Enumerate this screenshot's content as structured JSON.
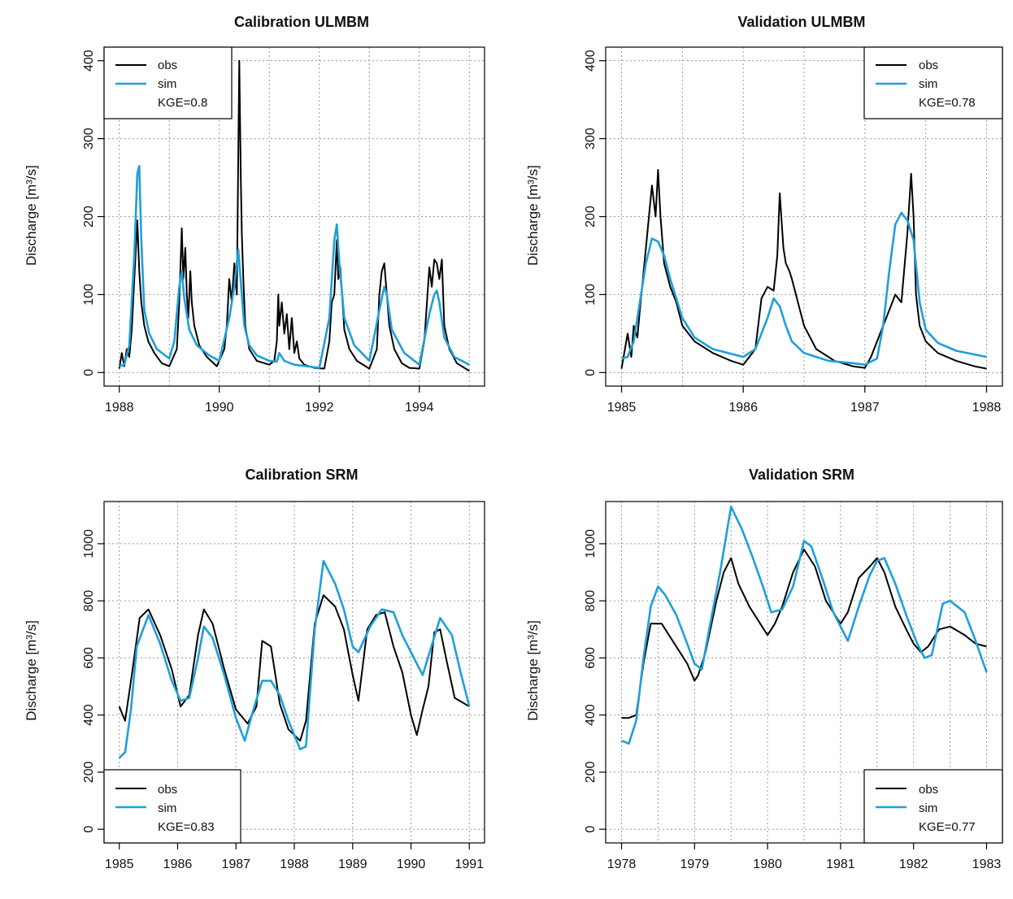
{
  "colors": {
    "obs": "#000000",
    "sim": "#1f9fd9",
    "grid": "#9a9a9a"
  },
  "legend": {
    "obs_label": "obs",
    "sim_label": "sim"
  },
  "chart_data": [
    {
      "type": "line",
      "title": "Calibration ULMBM",
      "ylabel": "Discharge [m³/s]",
      "xlim": [
        1988,
        1995
      ],
      "ylim": [
        0,
        400
      ],
      "xticks": [
        1988,
        1990,
        1992,
        1994
      ],
      "xgrid": [
        1988,
        1989,
        1990,
        1991,
        1992,
        1993,
        1994,
        1995
      ],
      "yticks": [
        0,
        100,
        200,
        300,
        400
      ],
      "legend_position": "top-left",
      "kge": "KGE=0.8",
      "series": [
        {
          "name": "obs",
          "x": [
            1988.0,
            1988.05,
            1988.1,
            1988.15,
            1988.2,
            1988.25,
            1988.3,
            1988.36,
            1988.4,
            1988.44,
            1988.5,
            1988.58,
            1988.7,
            1988.85,
            1989.0,
            1989.15,
            1989.2,
            1989.25,
            1989.28,
            1989.32,
            1989.35,
            1989.38,
            1989.42,
            1989.45,
            1989.5,
            1989.6,
            1989.75,
            1989.95,
            1990.1,
            1990.15,
            1990.2,
            1990.25,
            1990.3,
            1990.35,
            1990.4,
            1990.43,
            1990.45,
            1990.48,
            1990.52,
            1990.6,
            1990.75,
            1991.0,
            1991.1,
            1991.15,
            1991.18,
            1991.2,
            1991.25,
            1991.3,
            1991.35,
            1991.4,
            1991.45,
            1991.5,
            1991.55,
            1991.6,
            1991.7,
            1991.9,
            1992.1,
            1992.2,
            1992.25,
            1992.3,
            1992.35,
            1992.38,
            1992.42,
            1992.5,
            1992.6,
            1992.75,
            1993.0,
            1993.15,
            1993.2,
            1993.25,
            1993.3,
            1993.35,
            1993.4,
            1993.5,
            1993.65,
            1993.8,
            1994.0,
            1994.1,
            1994.2,
            1994.25,
            1994.3,
            1994.35,
            1994.4,
            1994.45,
            1994.5,
            1994.6,
            1994.75,
            1995.0
          ],
          "y": [
            5,
            25,
            8,
            30,
            20,
            55,
            120,
            195,
            130,
            90,
            60,
            40,
            25,
            12,
            8,
            30,
            90,
            185,
            120,
            160,
            100,
            70,
            130,
            90,
            60,
            35,
            20,
            8,
            30,
            60,
            120,
            90,
            140,
            100,
            400,
            250,
            180,
            120,
            60,
            30,
            15,
            10,
            15,
            40,
            100,
            60,
            90,
            50,
            75,
            30,
            70,
            25,
            40,
            18,
            10,
            6,
            5,
            40,
            90,
            100,
            170,
            120,
            135,
            55,
            30,
            15,
            5,
            30,
            100,
            130,
            140,
            100,
            60,
            30,
            12,
            6,
            5,
            40,
            135,
            110,
            145,
            140,
            120,
            145,
            60,
            30,
            12,
            2
          ]
        },
        {
          "name": "sim",
          "x": [
            1988.0,
            1988.1,
            1988.2,
            1988.3,
            1988.36,
            1988.4,
            1988.44,
            1988.5,
            1988.6,
            1988.75,
            1989.0,
            1989.1,
            1989.2,
            1989.25,
            1989.3,
            1989.4,
            1989.55,
            1989.8,
            1990.0,
            1990.2,
            1990.3,
            1990.38,
            1990.45,
            1990.5,
            1990.6,
            1990.75,
            1991.0,
            1991.15,
            1991.2,
            1991.3,
            1991.5,
            1991.75,
            1992.0,
            1992.2,
            1992.3,
            1992.35,
            1992.4,
            1992.5,
            1992.7,
            1993.0,
            1993.2,
            1993.3,
            1993.35,
            1993.45,
            1993.7,
            1994.0,
            1994.2,
            1994.3,
            1994.35,
            1994.4,
            1994.5,
            1994.7,
            1995.0
          ],
          "y": [
            8,
            10,
            35,
            150,
            255,
            265,
            170,
            80,
            50,
            30,
            18,
            40,
            110,
            130,
            95,
            55,
            35,
            22,
            15,
            70,
            110,
            158,
            100,
            60,
            35,
            22,
            15,
            14,
            25,
            15,
            10,
            8,
            6,
            70,
            170,
            190,
            140,
            70,
            35,
            15,
            80,
            110,
            100,
            55,
            25,
            10,
            75,
            100,
            105,
            90,
            45,
            20,
            10
          ]
        }
      ]
    },
    {
      "type": "line",
      "title": "Validation ULMBM",
      "ylabel": "Discharge [m³/s]",
      "xlim": [
        1985,
        1988
      ],
      "ylim": [
        0,
        400
      ],
      "xticks": [
        1985,
        1986,
        1987,
        1988
      ],
      "xgrid": [
        1985,
        1985.5,
        1986,
        1986.5,
        1987,
        1987.5,
        1988
      ],
      "yticks": [
        0,
        100,
        200,
        300,
        400
      ],
      "legend_position": "top-right",
      "kge": "KGE=0.78",
      "series": [
        {
          "name": "obs",
          "x": [
            1985.0,
            1985.05,
            1985.08,
            1985.1,
            1985.13,
            1985.15,
            1985.2,
            1985.25,
            1985.28,
            1985.3,
            1985.32,
            1985.35,
            1985.4,
            1985.45,
            1985.5,
            1985.6,
            1985.75,
            1985.9,
            1986.0,
            1986.1,
            1986.15,
            1986.2,
            1986.25,
            1986.28,
            1986.3,
            1986.33,
            1986.35,
            1986.38,
            1986.4,
            1986.45,
            1986.5,
            1986.6,
            1986.75,
            1986.9,
            1987.0,
            1987.05,
            1987.1,
            1987.15,
            1987.2,
            1987.25,
            1987.3,
            1987.35,
            1987.38,
            1987.4,
            1987.42,
            1987.45,
            1987.5,
            1987.6,
            1987.75,
            1987.9,
            1988.0
          ],
          "y": [
            5,
            50,
            20,
            60,
            45,
            80,
            160,
            240,
            200,
            260,
            200,
            140,
            110,
            90,
            60,
            40,
            25,
            15,
            10,
            30,
            95,
            110,
            105,
            150,
            230,
            160,
            140,
            130,
            120,
            90,
            60,
            30,
            15,
            8,
            6,
            20,
            40,
            60,
            80,
            100,
            90,
            180,
            255,
            200,
            100,
            60,
            40,
            25,
            15,
            8,
            5
          ]
        },
        {
          "name": "sim",
          "x": [
            1985.0,
            1985.05,
            1985.1,
            1985.15,
            1985.2,
            1985.25,
            1985.3,
            1985.35,
            1985.4,
            1985.5,
            1985.6,
            1985.75,
            1986.0,
            1986.1,
            1986.2,
            1986.25,
            1986.3,
            1986.35,
            1986.4,
            1986.5,
            1986.7,
            1986.9,
            1987.0,
            1987.1,
            1987.15,
            1987.2,
            1987.25,
            1987.3,
            1987.35,
            1987.4,
            1987.45,
            1987.5,
            1987.6,
            1987.75,
            1988.0
          ],
          "y": [
            18,
            20,
            40,
            90,
            140,
            172,
            168,
            150,
            120,
            70,
            45,
            30,
            20,
            30,
            70,
            95,
            85,
            60,
            40,
            25,
            15,
            12,
            10,
            18,
            60,
            130,
            190,
            205,
            195,
            170,
            90,
            55,
            38,
            28,
            20
          ]
        }
      ]
    },
    {
      "type": "line",
      "title": "Calibration SRM",
      "ylabel": "Discharge [m³/s]",
      "xlim": [
        1985,
        1991
      ],
      "ylim": [
        0,
        1100
      ],
      "xticks": [
        1985,
        1986,
        1987,
        1988,
        1989,
        1990,
        1991
      ],
      "xgrid": [
        1985,
        1986,
        1987,
        1988,
        1989,
        1990,
        1991
      ],
      "yticks": [
        0,
        200,
        400,
        600,
        800,
        1000
      ],
      "legend_position": "bottom-left",
      "kge": "KGE=0.83",
      "series": [
        {
          "name": "obs",
          "x": [
            1985.0,
            1985.1,
            1985.2,
            1985.35,
            1985.5,
            1985.7,
            1985.9,
            1986.05,
            1986.2,
            1986.35,
            1986.45,
            1986.6,
            1986.8,
            1987.0,
            1987.2,
            1987.35,
            1987.45,
            1987.6,
            1987.75,
            1987.9,
            1988.1,
            1988.2,
            1988.35,
            1988.5,
            1988.7,
            1988.85,
            1989.0,
            1989.1,
            1989.25,
            1989.4,
            1989.55,
            1989.7,
            1989.85,
            1990.0,
            1990.1,
            1990.2,
            1990.3,
            1990.4,
            1990.5,
            1990.6,
            1990.75,
            1991.0
          ],
          "y": [
            430,
            380,
            520,
            740,
            770,
            680,
            560,
            430,
            470,
            680,
            770,
            720,
            560,
            420,
            370,
            430,
            660,
            640,
            440,
            350,
            310,
            380,
            720,
            820,
            780,
            700,
            540,
            450,
            700,
            750,
            760,
            640,
            550,
            400,
            330,
            420,
            500,
            690,
            700,
            600,
            460,
            430
          ]
        },
        {
          "name": "sim",
          "x": [
            1985.0,
            1985.1,
            1985.2,
            1985.3,
            1985.5,
            1985.7,
            1985.9,
            1986.05,
            1986.2,
            1986.35,
            1986.45,
            1986.6,
            1986.8,
            1987.0,
            1987.15,
            1987.3,
            1987.45,
            1987.6,
            1987.75,
            1987.9,
            1988.1,
            1988.2,
            1988.35,
            1988.5,
            1988.7,
            1988.85,
            1989.0,
            1989.1,
            1989.3,
            1989.5,
            1989.7,
            1989.85,
            1990.0,
            1990.2,
            1990.35,
            1990.5,
            1990.7,
            1990.85,
            1991.0
          ],
          "y": [
            250,
            270,
            420,
            640,
            750,
            650,
            520,
            450,
            460,
            600,
            710,
            670,
            540,
            390,
            310,
            420,
            520,
            520,
            470,
            380,
            280,
            290,
            700,
            940,
            860,
            770,
            640,
            620,
            710,
            770,
            760,
            680,
            620,
            540,
            640,
            740,
            680,
            550,
            430
          ]
        }
      ]
    },
    {
      "type": "line",
      "title": "Validation SRM",
      "ylabel": "Discharge [m³/s]",
      "xlim": [
        1978,
        1983
      ],
      "ylim": [
        0,
        1100
      ],
      "xticks": [
        1978,
        1979,
        1980,
        1981,
        1982,
        1983
      ],
      "xgrid": [
        1978,
        1978.5,
        1979,
        1979.5,
        1980,
        1980.5,
        1981,
        1981.5,
        1982,
        1982.5,
        1983
      ],
      "yticks": [
        0,
        200,
        400,
        600,
        800,
        1000
      ],
      "legend_position": "bottom-right",
      "kge": "KGE=0.77",
      "series": [
        {
          "name": "obs",
          "x": [
            1978.0,
            1978.1,
            1978.2,
            1978.3,
            1978.4,
            1978.55,
            1978.7,
            1978.9,
            1979.0,
            1979.05,
            1979.15,
            1979.3,
            1979.4,
            1979.5,
            1979.6,
            1979.75,
            1979.9,
            1980.0,
            1980.1,
            1980.2,
            1980.35,
            1980.5,
            1980.65,
            1980.8,
            1981.0,
            1981.1,
            1981.25,
            1981.4,
            1981.5,
            1981.6,
            1981.75,
            1981.9,
            1982.0,
            1982.1,
            1982.2,
            1982.35,
            1982.5,
            1982.7,
            1982.85,
            1983.0
          ],
          "y": [
            390,
            390,
            400,
            580,
            720,
            720,
            660,
            580,
            520,
            540,
            620,
            800,
            900,
            950,
            860,
            780,
            720,
            680,
            720,
            780,
            900,
            980,
            920,
            800,
            720,
            760,
            880,
            920,
            950,
            900,
            780,
            700,
            650,
            620,
            640,
            700,
            710,
            680,
            650,
            640
          ]
        },
        {
          "name": "sim",
          "x": [
            1978.0,
            1978.1,
            1978.2,
            1978.3,
            1978.4,
            1978.5,
            1978.6,
            1978.75,
            1978.9,
            1979.0,
            1979.1,
            1979.2,
            1979.35,
            1979.5,
            1979.65,
            1979.8,
            1979.95,
            1980.05,
            1980.2,
            1980.35,
            1980.5,
            1980.6,
            1980.75,
            1980.9,
            1981.1,
            1981.25,
            1981.4,
            1981.5,
            1981.6,
            1981.75,
            1981.9,
            1982.05,
            1982.15,
            1982.25,
            1982.4,
            1982.5,
            1982.7,
            1982.85,
            1983.0
          ],
          "y": [
            310,
            300,
            380,
            600,
            780,
            850,
            820,
            750,
            650,
            580,
            560,
            700,
            900,
            1130,
            1050,
            950,
            840,
            760,
            770,
            850,
            1010,
            990,
            880,
            760,
            660,
            780,
            890,
            940,
            950,
            860,
            750,
            650,
            600,
            610,
            790,
            800,
            760,
            660,
            550
          ]
        }
      ]
    }
  ]
}
